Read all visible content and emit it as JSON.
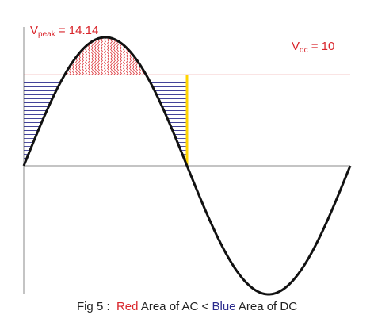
{
  "labels": {
    "peak_main": "V",
    "peak_sub": "peak",
    "peak_value": " = 14.14",
    "dc_main": "V",
    "dc_sub": "dc",
    "dc_value": " = 10"
  },
  "caption": {
    "prefix": "Fig 5 :  ",
    "red_word": "Red",
    "middle": " Area of AC < ",
    "blue_word": "Blue",
    "suffix": " Area of DC"
  },
  "colors": {
    "red": "#d9252b",
    "blue": "#2a2a8c",
    "yellow": "#ffd400",
    "curve": "#111111",
    "axis": "#888888"
  },
  "chart_data": {
    "type": "line",
    "series": [
      {
        "name": "",
        "function": "sine",
        "amplitude": 14.14,
        "periods": 1
      }
    ],
    "dc_level": 10,
    "peak_value": 14.14,
    "ylim": [
      -14.14,
      14.14
    ],
    "xlim": [
      0,
      360
    ]
  }
}
